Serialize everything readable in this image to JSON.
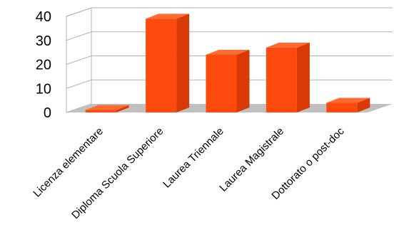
{
  "chart_data": {
    "type": "bar",
    "categories": [
      "Licenza elementare",
      "Diploma Scuola Superiore",
      "Laurea Triennale",
      "Laurea Magistrale",
      "Dottorato o post-doc"
    ],
    "values": [
      1,
      39,
      24,
      27,
      4
    ],
    "title": "",
    "xlabel": "",
    "ylabel": "",
    "ylim": [
      0,
      40
    ],
    "yticks": [
      0,
      10,
      20,
      30,
      40
    ],
    "grid": true,
    "legend": "none",
    "style": "3d",
    "colors": {
      "bar_front": "#FF4A0E",
      "bar_side": "#D93A05",
      "bar_top": "#FF6A30",
      "floor": "#C0C0C0",
      "gridline": "#B3B3B3"
    }
  }
}
